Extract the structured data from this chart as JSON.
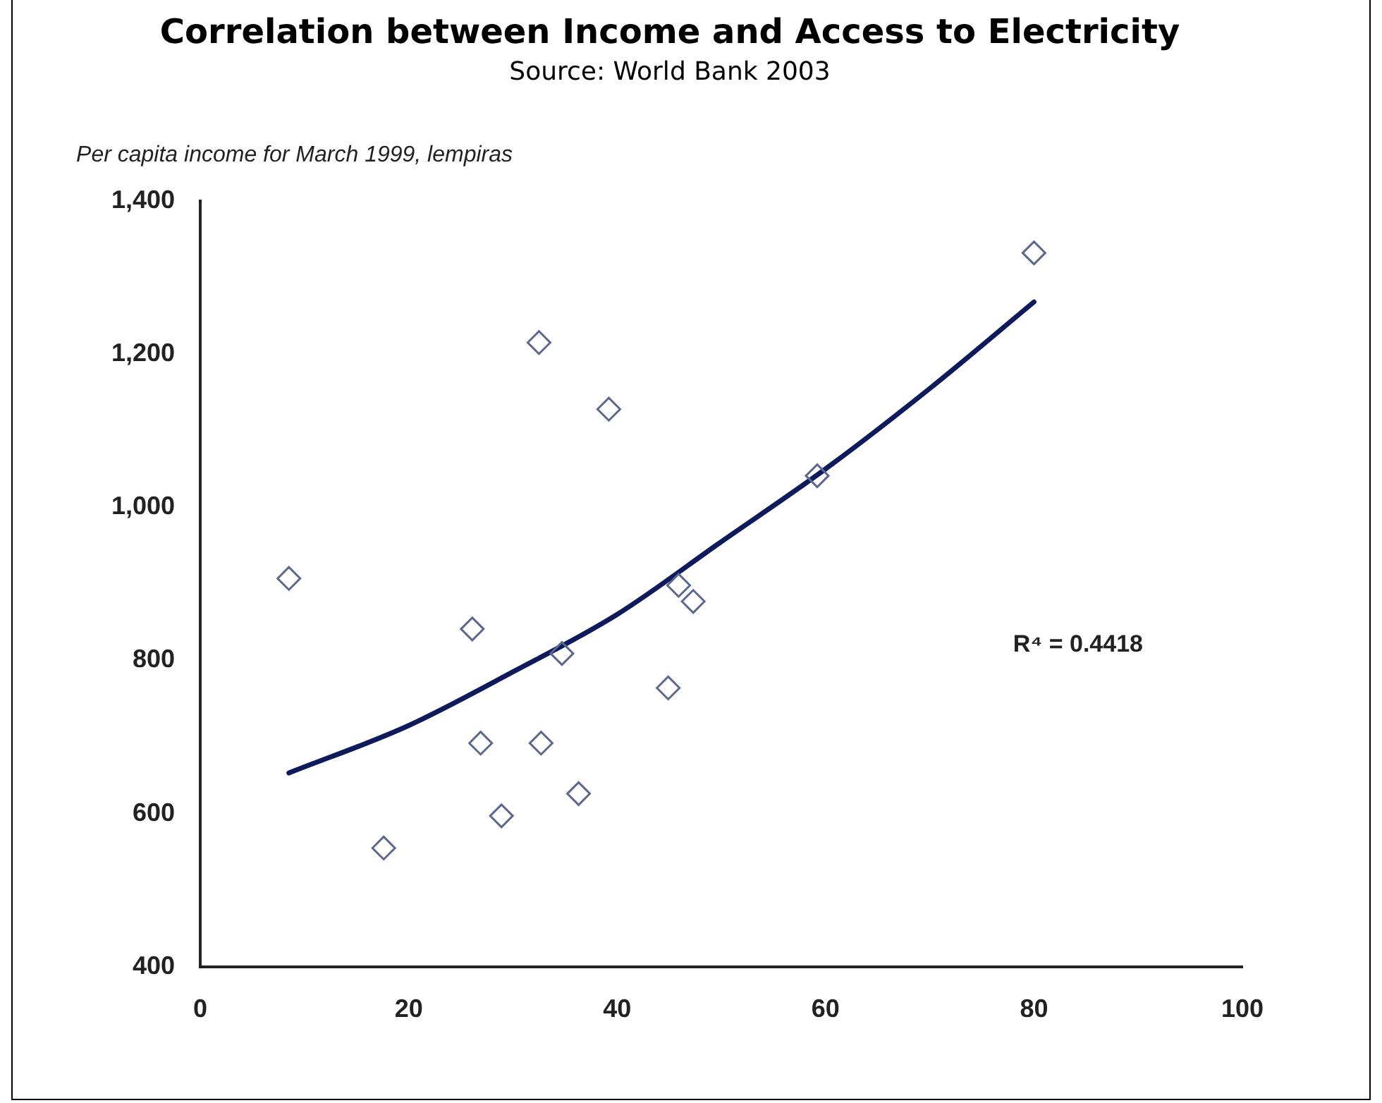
{
  "chart_data": {
    "type": "scatter",
    "title": "Correlation between Income and Access to Electricity",
    "subtitle": "Source: World Bank 2003",
    "ylabel": "Per capita income for March 1999, lempiras",
    "xlim": [
      0,
      100
    ],
    "xticks": [
      0,
      20,
      40,
      60,
      80,
      100
    ],
    "ylim": [
      400,
      1400
    ],
    "yticks": [
      400,
      600,
      800,
      {
        "value": 1000,
        "label": "1,000"
      },
      {
        "value": 1200,
        "label": "1,200"
      },
      {
        "value": 1400,
        "label": "1,400"
      }
    ],
    "grid": false,
    "legend": false,
    "series": [
      {
        "type": "scatter",
        "marker": "diamond",
        "color": "#5c6890",
        "x": [
          8.5,
          17.6,
          26.1,
          26.9,
          28.9,
          32.5,
          32.7,
          34.7,
          36.3,
          39.2,
          44.9,
          45.9,
          47.3,
          59.2,
          80
        ],
        "values": [
          907,
          555,
          841,
          692,
          597,
          1215,
          692,
          809,
          626,
          1128,
          764,
          898,
          877,
          1041,
          1332
        ]
      },
      {
        "type": "line",
        "marker": "none",
        "line_style": "solid",
        "color": "#0d1a5c",
        "x": [
          8.5,
          20,
          30,
          40,
          50,
          60,
          70,
          80
        ],
        "values": [
          653,
          715,
          785,
          860,
          955,
          1050,
          1155,
          1268
        ]
      }
    ],
    "annotations": [
      "R⁴ = 0.4418"
    ]
  }
}
